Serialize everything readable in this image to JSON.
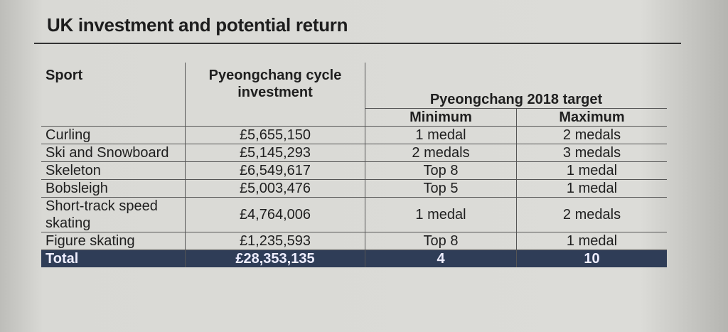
{
  "header": {
    "title": "UK investment and potential return"
  },
  "table": {
    "columns": [
      "Sport",
      "Pyeongchang cycle investment",
      "Pyeongchang 2018 target"
    ],
    "subcolumns": [
      "Minimum",
      "Maximum"
    ],
    "rows": [
      [
        "Curling",
        "£5,655,150",
        "1 medal",
        "2 medals"
      ],
      [
        "Ski and Snowboard",
        "£5,145,293",
        "2 medals",
        "3 medals"
      ],
      [
        "Skeleton",
        "£6,549,617",
        "Top 8",
        "1 medal"
      ],
      [
        "Bobsleigh",
        "£5,003,476",
        "Top 5",
        "1 medal"
      ],
      [
        "Short-track speed skating",
        "£4,764,006",
        "1 medal",
        "2 medals"
      ],
      [
        "Figure skating",
        "£1,235,593",
        "Top 8",
        "1 medal"
      ]
    ],
    "total": [
      "Total",
      "£28,353,135",
      "4",
      "10"
    ]
  }
}
